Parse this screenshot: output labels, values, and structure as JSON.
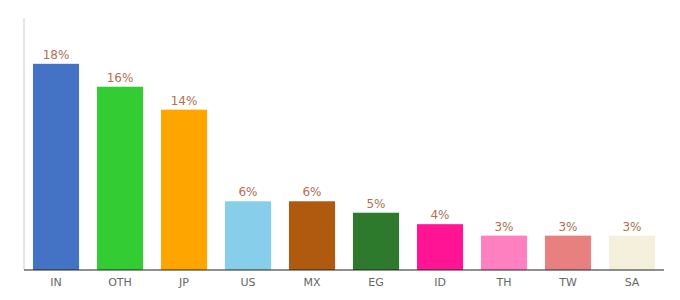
{
  "chart_data": {
    "type": "bar",
    "categories": [
      "IN",
      "OTH",
      "JP",
      "US",
      "MX",
      "EG",
      "ID",
      "TH",
      "TW",
      "SA"
    ],
    "values": [
      18,
      16,
      14,
      6,
      6,
      5,
      4,
      3,
      3,
      3
    ],
    "value_labels": [
      "18%",
      "16%",
      "14%",
      "6%",
      "6%",
      "5%",
      "4%",
      "3%",
      "3%",
      "3%"
    ],
    "colors": [
      "#4472C4",
      "#33CC33",
      "#FFA500",
      "#87CEEB",
      "#B05A10",
      "#2D7A2D",
      "#FF1493",
      "#FF80C0",
      "#E88080",
      "#F5F0DC"
    ],
    "ylim": [
      0,
      22
    ],
    "data_labels": true,
    "tick_labels": "x",
    "grid": false
  }
}
